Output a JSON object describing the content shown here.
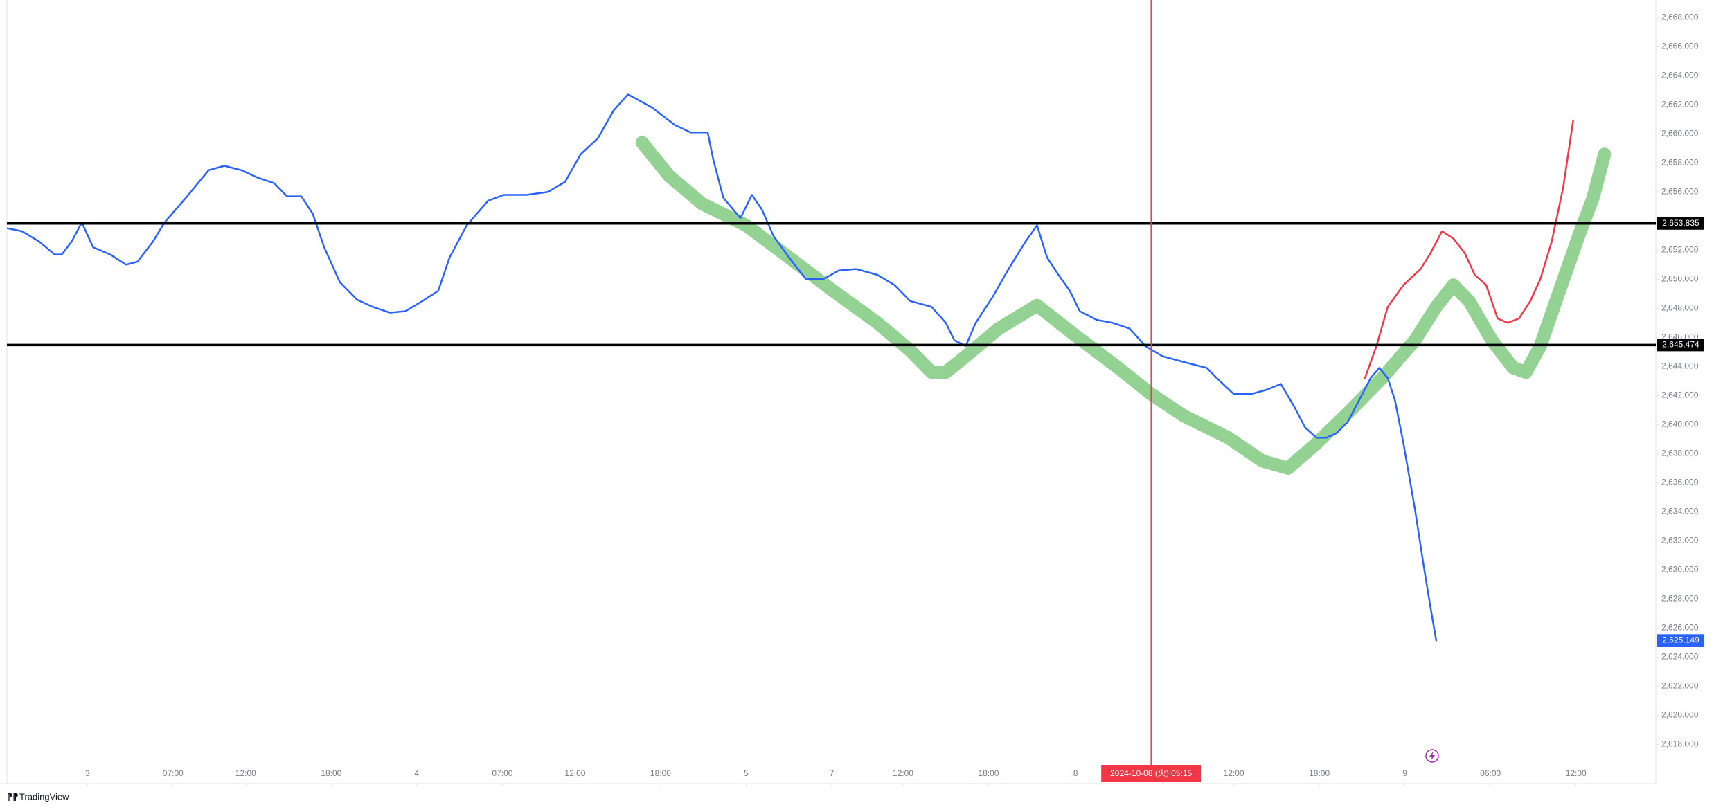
{
  "chart_data": {
    "type": "line",
    "xlim": [
      0,
      115.6
    ],
    "xticks": [
      {
        "value": 5.6,
        "label": "3"
      },
      {
        "value": 11.6,
        "label": "07:00"
      },
      {
        "value": 16.7,
        "label": "12:00"
      },
      {
        "value": 22.7,
        "label": "18:00"
      },
      {
        "value": 28.7,
        "label": "4"
      },
      {
        "value": 34.7,
        "label": "07:00"
      },
      {
        "value": 39.8,
        "label": "12:00"
      },
      {
        "value": 45.8,
        "label": "18:00"
      },
      {
        "value": 51.8,
        "label": "5"
      },
      {
        "value": 57.8,
        "label": "7"
      },
      {
        "value": 62.8,
        "label": "12:00"
      },
      {
        "value": 68.8,
        "label": "18:00"
      },
      {
        "value": 74.9,
        "label": "8"
      },
      {
        "value": 86,
        "label": "12:00"
      },
      {
        "value": 92,
        "label": "18:00"
      },
      {
        "value": 98,
        "label": "9"
      },
      {
        "value": 104,
        "label": "06:00"
      },
      {
        "value": 110,
        "label": "12:00"
      }
    ],
    "ylim": [
      2616.5,
      2669.2
    ],
    "yticks": [
      {
        "value": 2618,
        "label": "2,618.000"
      },
      {
        "value": 2620,
        "label": "2,620.000"
      },
      {
        "value": 2622,
        "label": "2,622.000"
      },
      {
        "value": 2624,
        "label": "2,624.000"
      },
      {
        "value": 2626,
        "label": "2,626.000"
      },
      {
        "value": 2628,
        "label": "2,628.000"
      },
      {
        "value": 2630,
        "label": "2,630.000"
      },
      {
        "value": 2632,
        "label": "2,632.000"
      },
      {
        "value": 2634,
        "label": "2,634.000"
      },
      {
        "value": 2636,
        "label": "2,636.000"
      },
      {
        "value": 2638,
        "label": "2,638.000"
      },
      {
        "value": 2640,
        "label": "2,640.000"
      },
      {
        "value": 2642,
        "label": "2,642.000"
      },
      {
        "value": 2644,
        "label": "2,644.000"
      },
      {
        "value": 2646,
        "label": "2,646.000"
      },
      {
        "value": 2648,
        "label": "2,648.000"
      },
      {
        "value": 2650,
        "label": "2,650.000"
      },
      {
        "value": 2652,
        "label": "2,652.000"
      },
      {
        "value": 2654,
        "label": "2,654.000"
      },
      {
        "value": 2656,
        "label": "2,656.000"
      },
      {
        "value": 2658,
        "label": "2,658.000"
      },
      {
        "value": 2660,
        "label": "2,660.000"
      },
      {
        "value": 2662,
        "label": "2,662.000"
      },
      {
        "value": 2664,
        "label": "2,664.000"
      },
      {
        "value": 2666,
        "label": "2,666.000"
      },
      {
        "value": 2668,
        "label": "2,668.000"
      }
    ],
    "levels": [
      {
        "value": 2653.835,
        "label": "2,653.835"
      },
      {
        "value": 2645.474,
        "label": "2,645.474"
      }
    ],
    "crosshair": {
      "x": 80.2,
      "label": "2024-10-08 (火)  05:15"
    },
    "brand": "TradingView",
    "series": [
      {
        "color": "#93d293",
        "width": 19,
        "x": [
          44.5,
          46.4,
          48.7,
          51.8,
          54.8,
          57.9,
          61,
          63.3,
          64.8,
          65.8,
          67.2,
          69.5,
          72.2,
          74.8,
          77.9,
          80.2,
          82.5,
          85.6,
          88,
          89.8,
          91.8,
          94.1,
          96.4,
          98.7,
          100.2,
          101.4,
          102.5,
          104.1,
          105.6,
          106.5,
          107.5,
          108.7,
          110.2,
          111.2,
          112
        ],
        "values": [
          2659.4,
          2657.1,
          2655.2,
          2653.7,
          2651.5,
          2649.2,
          2647.0,
          2645.1,
          2643.6,
          2643.6,
          2644.7,
          2646.6,
          2648.2,
          2646.2,
          2643.9,
          2642.1,
          2640.6,
          2639.1,
          2637.5,
          2637.0,
          2638.7,
          2640.9,
          2643.2,
          2645.8,
          2648.1,
          2649.6,
          2648.5,
          2645.8,
          2643.9,
          2643.6,
          2645.4,
          2648.8,
          2653.0,
          2655.6,
          2658.6
        ]
      },
      {
        "color": "#2962ff",
        "width": 2.5,
        "last_label": "2,625.149",
        "x": [
          0,
          1,
          2.2,
          3.3,
          3.8,
          4.5,
          5.2,
          6,
          7.2,
          8.3,
          9.1,
          10.2,
          11,
          12.5,
          14.1,
          15.2,
          16.4,
          17.5,
          18.7,
          19.6,
          20.6,
          21.4,
          22.2,
          23.3,
          24.5,
          25.6,
          26.8,
          27.9,
          29.1,
          30.2,
          31,
          32.2,
          33.7,
          34.8,
          36.4,
          37.9,
          39.1,
          40.2,
          41.4,
          42.5,
          43.5,
          44.1,
          45.2,
          46.8,
          47.9,
          49.1,
          49.5,
          50.2,
          51.4,
          52.2,
          52.9,
          53.7,
          54.8,
          56,
          57.2,
          58.3,
          59.5,
          61,
          62.2,
          63.3,
          64.8,
          65.8,
          66.4,
          67.2,
          67.9,
          69.1,
          70.2,
          71.4,
          72.2,
          72.9,
          73.7,
          74.5,
          75.2,
          76.4,
          77.5,
          78.7,
          79.8,
          81,
          82.5,
          84.1,
          84.8,
          86,
          87.2,
          88.3,
          89.3,
          90.2,
          91,
          91.8,
          92.5,
          93.2,
          94,
          94.8,
          95.6,
          96.2,
          96.8,
          97.3,
          97.9,
          98.7,
          99.3,
          99.8,
          100.2
        ],
        "values": [
          2653.5,
          2653.3,
          2652.6,
          2651.7,
          2651.7,
          2652.6,
          2653.9,
          2652.2,
          2651.7,
          2651.0,
          2651.2,
          2652.6,
          2653.9,
          2655.6,
          2657.5,
          2657.8,
          2657.5,
          2657.0,
          2656.6,
          2655.7,
          2655.7,
          2654.5,
          2652.2,
          2649.8,
          2648.6,
          2648.1,
          2647.7,
          2647.8,
          2648.5,
          2649.2,
          2651.5,
          2653.7,
          2655.4,
          2655.8,
          2655.8,
          2656.0,
          2656.7,
          2658.6,
          2659.7,
          2661.6,
          2662.7,
          2662.4,
          2661.8,
          2660.6,
          2660.1,
          2660.1,
          2658.2,
          2655.6,
          2654.2,
          2655.8,
          2654.8,
          2653.0,
          2651.5,
          2650.0,
          2650.0,
          2650.6,
          2650.7,
          2650.3,
          2649.6,
          2648.5,
          2648.1,
          2647.0,
          2645.8,
          2645.4,
          2647.0,
          2648.8,
          2650.7,
          2652.6,
          2653.7,
          2651.5,
          2650.3,
          2649.2,
          2647.8,
          2647.2,
          2647.0,
          2646.6,
          2645.4,
          2644.7,
          2644.3,
          2643.9,
          2643.2,
          2642.1,
          2642.1,
          2642.4,
          2642.8,
          2641.3,
          2639.8,
          2639.1,
          2639.1,
          2639.4,
          2640.2,
          2641.7,
          2643.2,
          2643.9,
          2643.2,
          2641.7,
          2638.7,
          2634.2,
          2630.4,
          2627.4,
          2625.149
        ]
      },
      {
        "color": "#f23645",
        "width": 2.5,
        "x": [
          95.2,
          96,
          96.8,
          97.9,
          99.1,
          99.8,
          100.6,
          101.4,
          102.2,
          102.9,
          103.7,
          104.5,
          105.2,
          106,
          106.8,
          107.5,
          108.3,
          109.1,
          109.8
        ],
        "values": [
          2643.2,
          2645.4,
          2648.1,
          2649.6,
          2650.7,
          2651.8,
          2653.3,
          2652.8,
          2651.8,
          2650.3,
          2649.6,
          2647.3,
          2647.0,
          2647.3,
          2648.5,
          2650.0,
          2652.6,
          2656.3,
          2660.9
        ]
      }
    ]
  }
}
